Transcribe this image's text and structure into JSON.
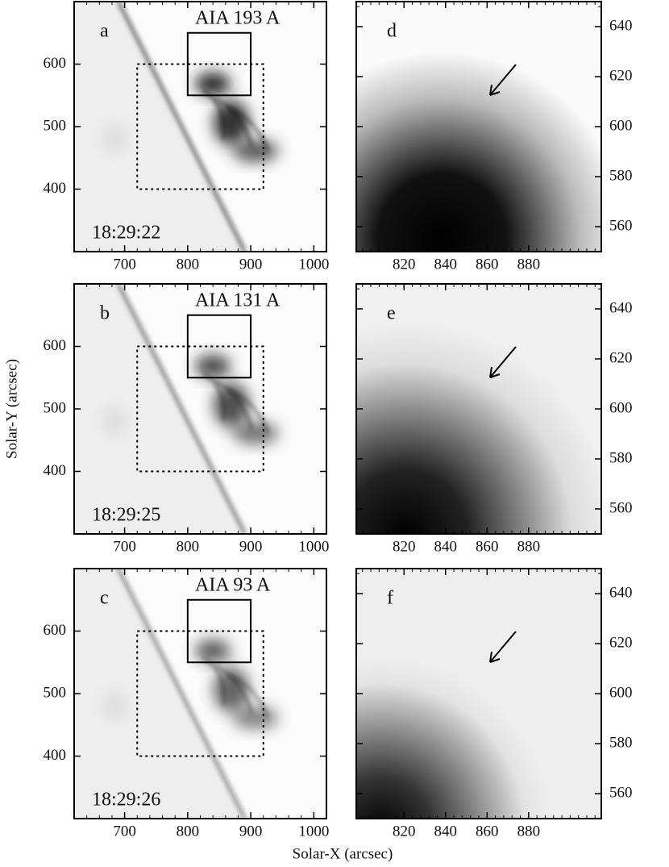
{
  "chart_data": [
    {
      "type": "image",
      "label": "a",
      "title": "AIA 193 A",
      "time": "18:29:22",
      "xlim": [
        620,
        1020
      ],
      "ylim": [
        300,
        700
      ],
      "xticks": [
        700,
        800,
        900,
        1000
      ],
      "yticks": [
        400,
        500,
        600
      ],
      "boxes": [
        {
          "x": [
            800,
            900
          ],
          "y": [
            550,
            650
          ],
          "style": "solid"
        },
        {
          "x": [
            720,
            920
          ],
          "y": [
            400,
            600
          ],
          "style": "dotted"
        }
      ]
    },
    {
      "type": "image",
      "label": "b",
      "title": "AIA 131 A",
      "time": "18:29:25",
      "xlim": [
        620,
        1020
      ],
      "ylim": [
        300,
        700
      ],
      "xticks": [
        700,
        800,
        900,
        1000
      ],
      "yticks": [
        400,
        500,
        600
      ],
      "ylabel": "Solar-Y (arcsec)",
      "boxes": [
        {
          "x": [
            800,
            900
          ],
          "y": [
            550,
            650
          ],
          "style": "solid"
        },
        {
          "x": [
            720,
            920
          ],
          "y": [
            400,
            600
          ],
          "style": "dotted"
        }
      ]
    },
    {
      "type": "image",
      "label": "c",
      "title": "AIA 93 A",
      "time": "18:29:26",
      "xlim": [
        620,
        1020
      ],
      "ylim": [
        300,
        700
      ],
      "xticks": [
        700,
        800,
        900,
        1000
      ],
      "yticks": [
        400,
        500,
        600
      ],
      "xlabel": "Solar-X (arcsec)",
      "boxes": [
        {
          "x": [
            800,
            900
          ],
          "y": [
            550,
            650
          ],
          "style": "solid"
        },
        {
          "x": [
            720,
            920
          ],
          "y": [
            400,
            600
          ],
          "style": "dotted"
        }
      ]
    },
    {
      "type": "image",
      "label": "d",
      "xlim": [
        797,
        915
      ],
      "ylim": [
        550,
        650
      ],
      "xticks": [
        820,
        840,
        860,
        880
      ],
      "yticks": [
        560,
        580,
        600,
        620,
        640
      ],
      "yaxis": "right"
    },
    {
      "type": "image",
      "label": "e",
      "xlim": [
        797,
        915
      ],
      "ylim": [
        550,
        650
      ],
      "xticks": [
        820,
        840,
        860,
        880
      ],
      "yticks": [
        560,
        580,
        600,
        620,
        640
      ],
      "yaxis": "right"
    },
    {
      "type": "image",
      "label": "f",
      "xlim": [
        797,
        915
      ],
      "ylim": [
        550,
        650
      ],
      "xticks": [
        820,
        840,
        860,
        880
      ],
      "yticks": [
        560,
        580,
        600,
        620,
        640
      ],
      "yaxis": "right"
    }
  ]
}
